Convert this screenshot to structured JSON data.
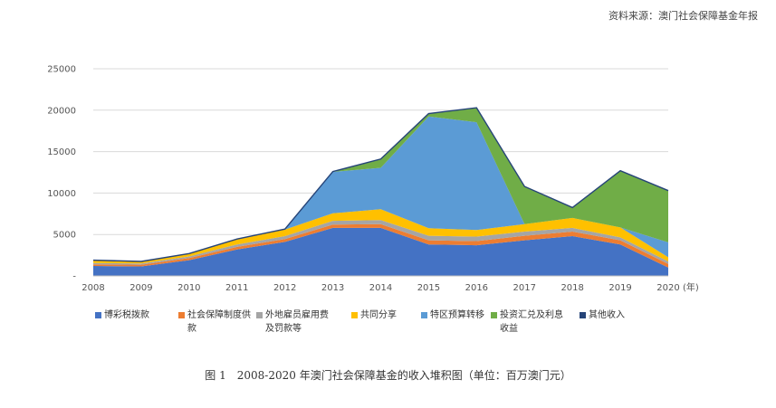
{
  "source_note": "资料来源：澳门社会保障基金年报",
  "caption": "图 1　2008-2020 年澳门社会保障基金的收入堆积图（单位：百万澳门元）",
  "chart_data": {
    "type": "area",
    "stacked": true,
    "x": [
      2008,
      2009,
      2010,
      2011,
      2012,
      2013,
      2014,
      2015,
      2016,
      2017,
      2018,
      2019,
      2020
    ],
    "x_unit_label": "(年)",
    "ylim": [
      0,
      25000
    ],
    "yticks": [
      0,
      5000,
      10000,
      15000,
      20000,
      25000
    ],
    "ytick_labels": [
      "-",
      "5000",
      "10000",
      "15000",
      "20000",
      "25000"
    ],
    "grid": true,
    "legend_position": "bottom",
    "series": [
      {
        "name": "博彩税拨款",
        "color": "#4472c4",
        "values": [
          1200,
          1150,
          1900,
          3200,
          4100,
          5800,
          5800,
          3800,
          3700,
          4300,
          4800,
          3800,
          1000
        ]
      },
      {
        "name": "社会保障制度供款",
        "color": "#ed7d31",
        "values": [
          200,
          200,
          250,
          300,
          350,
          400,
          450,
          500,
          500,
          550,
          550,
          500,
          450
        ]
      },
      {
        "name": "外地雇员雇用费及罚款等",
        "color": "#a5a5a5",
        "values": [
          150,
          150,
          200,
          300,
          350,
          450,
          500,
          550,
          550,
          500,
          450,
          350,
          300
        ]
      },
      {
        "name": "共同分享",
        "color": "#ffc000",
        "values": [
          300,
          200,
          300,
          600,
          800,
          900,
          1300,
          900,
          800,
          900,
          1200,
          1200,
          500
        ]
      },
      {
        "name": "特区预算转移",
        "color": "#5b9bd5",
        "values": [
          0,
          0,
          0,
          0,
          0,
          5000,
          5000,
          13500,
          13000,
          0,
          0,
          0,
          1800
        ]
      },
      {
        "name": "投资汇兑及利息收益",
        "color": "#70ad47",
        "values": [
          0,
          0,
          0,
          0,
          0,
          0,
          1000,
          300,
          1700,
          4500,
          1200,
          6800,
          6200
        ]
      },
      {
        "name": "其他收入",
        "color": "#264478",
        "values": [
          50,
          50,
          50,
          50,
          50,
          50,
          50,
          50,
          50,
          50,
          50,
          50,
          50
        ]
      }
    ]
  }
}
